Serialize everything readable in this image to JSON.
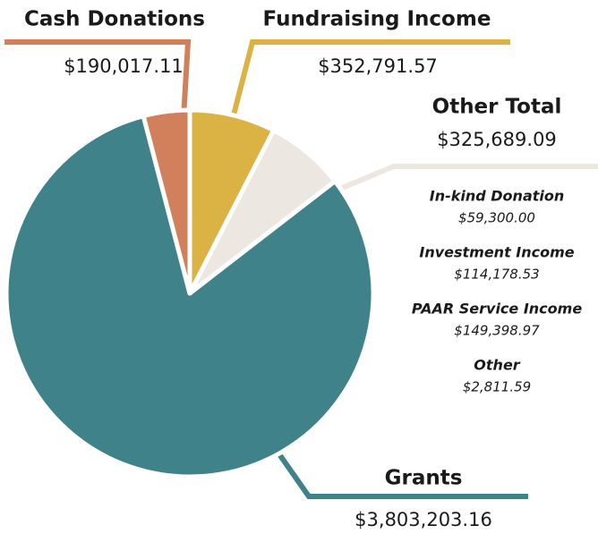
{
  "chart_data": {
    "type": "pie",
    "categories": [
      "Fundraising Income",
      "Other Total",
      "Grants",
      "Cash Donations"
    ],
    "values": [
      352791.57,
      325689.09,
      3803203.16,
      190017.11
    ],
    "value_labels": [
      "$352,791.57",
      "$325,689.09",
      "$3,803,203.16",
      "$190,017.11"
    ],
    "colors": [
      "#dbb244",
      "#ece7e0",
      "#40828a",
      "#d27f5c"
    ],
    "breakdown": [
      {
        "label": "In-kind Donation",
        "value_label": "$59,300.00"
      },
      {
        "label": "Investment Income",
        "value_label": "$114,178.53"
      },
      {
        "label": "PAAR Service Income",
        "value_label": "$149,398.97"
      },
      {
        "label": "Other",
        "value_label": "$2,811.59"
      }
    ]
  }
}
